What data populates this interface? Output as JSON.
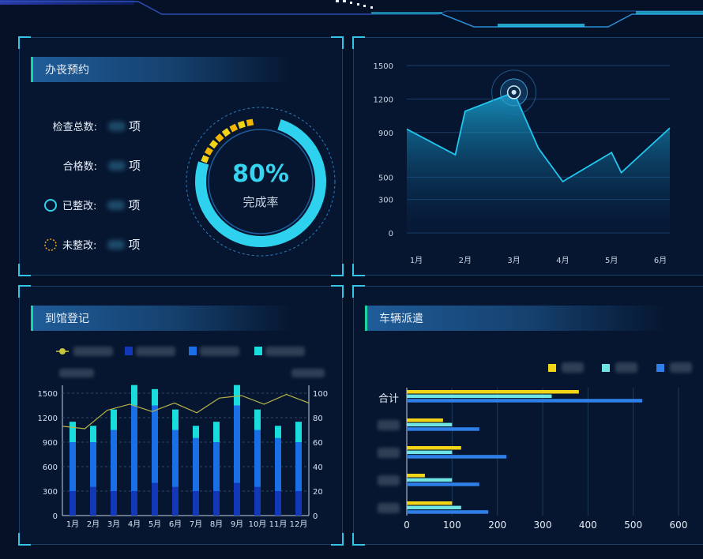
{
  "panels": {
    "inspection": {
      "title": "办丧预约",
      "rows": [
        {
          "label": "检查总数:",
          "unit": "项"
        },
        {
          "label": "合格数:",
          "unit": "项"
        },
        {
          "label": "已整改:",
          "unit": "项"
        },
        {
          "label": "未整改:",
          "unit": "项"
        }
      ],
      "gauge": {
        "percent_text": "80%",
        "label": "完成率",
        "value": 0.8
      }
    },
    "visits": {
      "title": "到馆登记"
    },
    "vehicles": {
      "title": "车辆派遣",
      "total_label": "合计"
    }
  },
  "colors": {
    "cyan": "#2fd2ee",
    "yellow": "#f2d417",
    "light_cyan": "#6fe4e4",
    "blue": "#2f7fe8",
    "bar_dark": "#1238b8",
    "bar_mid": "#1a6ee6",
    "bar_top": "#19dcdc",
    "line_olive": "#b5b34a"
  },
  "chart_data": [
    {
      "type": "area",
      "categories": [
        "1月",
        "2月",
        "3月",
        "4月",
        "5月",
        "6月"
      ],
      "x": [
        "1月",
        "1.8",
        "2月",
        "3月",
        "3.5",
        "4月",
        "5月",
        "5.2",
        "6月"
      ],
      "values": [
        930,
        700,
        1090,
        1260,
        760,
        460,
        720,
        540,
        940
      ],
      "highlight_index": 3,
      "yticks": [
        0,
        300,
        500,
        900,
        1200,
        1500
      ],
      "ylim": [
        0,
        1500
      ],
      "grid": true
    },
    {
      "type": "bar",
      "categories": [
        "1月",
        "2月",
        "3月",
        "4月",
        "5月",
        "6月",
        "7月",
        "8月",
        "9月",
        "10月",
        "11月",
        "12月"
      ],
      "series": [
        {
          "stack": [
            300,
            350,
            300,
            300,
            400,
            350,
            300,
            300,
            400,
            350,
            300,
            300
          ]
        },
        {
          "stack": [
            600,
            550,
            750,
            1050,
            950,
            700,
            650,
            600,
            950,
            700,
            650,
            600
          ]
        },
        {
          "stack": [
            250,
            200,
            250,
            250,
            200,
            250,
            150,
            250,
            250,
            250,
            150,
            250
          ]
        },
        {
          "line": [
            73,
            71,
            86,
            91,
            85,
            92,
            84,
            96,
            98,
            91,
            99,
            92
          ]
        }
      ],
      "yticks_left": [
        0,
        300,
        600,
        900,
        1200,
        1500
      ],
      "yticks_right": [
        0,
        20,
        40,
        60,
        80,
        100
      ],
      "ylim_left": [
        0,
        1500
      ],
      "ylim_right": [
        0,
        100
      ],
      "grid": true
    },
    {
      "type": "bar",
      "orientation": "horizontal",
      "categories": [
        "合计",
        "",
        "",
        "",
        ""
      ],
      "series": [
        {
          "values": [
            380,
            80,
            120,
            40,
            100
          ]
        },
        {
          "values": [
            320,
            100,
            100,
            100,
            120
          ]
        },
        {
          "values": [
            520,
            160,
            220,
            160,
            180
          ]
        }
      ],
      "xticks": [
        0,
        100,
        200,
        300,
        400,
        500,
        600
      ],
      "xlim": [
        0,
        600
      ],
      "grid": true
    }
  ]
}
